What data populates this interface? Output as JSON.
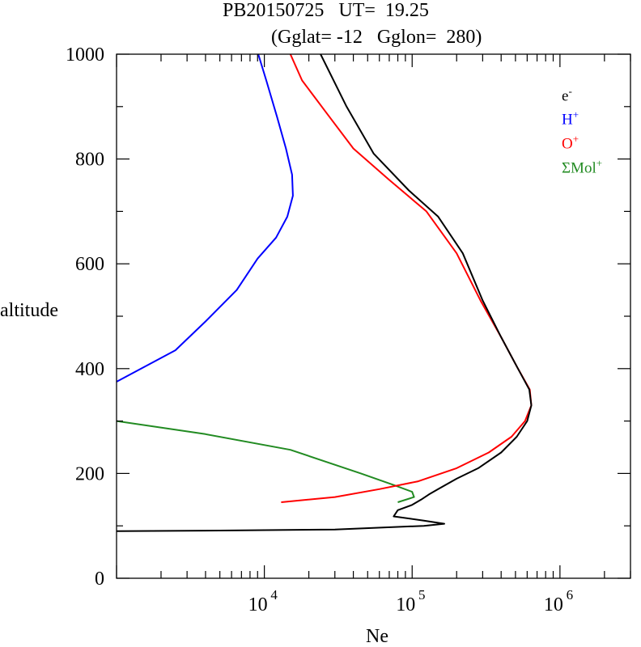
{
  "title": "PB20150725   UT=  19.25",
  "subtitle": "(Gglat= -12   Gglon=  280)",
  "colors": {
    "e": "#000000",
    "H": "#0000ff",
    "O": "#ff0000",
    "Mol": "#228b22",
    "axis": "#000000"
  },
  "chart_data": {
    "type": "line",
    "xlabel": "Ne",
    "ylabel": "altitude",
    "xscale": "log",
    "xlim": [
      1000,
      3000000
    ],
    "ylim": [
      0,
      1000
    ],
    "x_tick_labels": [
      {
        "value": 10000,
        "base": "10",
        "exp": "4"
      },
      {
        "value": 100000,
        "base": "10",
        "exp": "5"
      },
      {
        "value": 1000000,
        "base": "10",
        "exp": "6"
      }
    ],
    "y_tick_labels": [
      "0",
      "200",
      "400",
      "600",
      "800",
      "1000"
    ],
    "y_tick_values": [
      0,
      200,
      400,
      600,
      800,
      1000
    ],
    "legend_position": "top-right",
    "series": [
      {
        "name": "e",
        "sup": "-",
        "color": "#000000",
        "points": [
          [
            1000,
            90
          ],
          [
            5000,
            91
          ],
          [
            30000,
            93
          ],
          [
            120000,
            100
          ],
          [
            165000,
            104
          ],
          [
            120000,
            110
          ],
          [
            75000,
            118
          ],
          [
            80000,
            130
          ],
          [
            100000,
            140
          ],
          [
            115000,
            150
          ],
          [
            130000,
            160
          ],
          [
            150000,
            170
          ],
          [
            200000,
            190
          ],
          [
            280000,
            210
          ],
          [
            400000,
            240
          ],
          [
            510000,
            270
          ],
          [
            600000,
            300
          ],
          [
            640000,
            330
          ],
          [
            620000,
            360
          ],
          [
            520000,
            400
          ],
          [
            400000,
            460
          ],
          [
            300000,
            530
          ],
          [
            220000,
            620
          ],
          [
            150000,
            690
          ],
          [
            95000,
            740
          ],
          [
            55000,
            810
          ],
          [
            36000,
            900
          ],
          [
            24000,
            1000
          ]
        ]
      },
      {
        "name": "H",
        "sup": "+",
        "color": "#0000ff",
        "points": [
          [
            1000,
            375
          ],
          [
            2500,
            435
          ],
          [
            4000,
            490
          ],
          [
            6500,
            550
          ],
          [
            9000,
            610
          ],
          [
            12000,
            650
          ],
          [
            14300,
            690
          ],
          [
            15600,
            730
          ],
          [
            15400,
            770
          ],
          [
            14000,
            820
          ],
          [
            12200,
            880
          ],
          [
            10300,
            950
          ],
          [
            9100,
            1000
          ]
        ]
      },
      {
        "name": "O",
        "sup": "+",
        "color": "#ff0000",
        "points": [
          [
            13000,
            145
          ],
          [
            30000,
            155
          ],
          [
            60000,
            170
          ],
          [
            110000,
            185
          ],
          [
            200000,
            210
          ],
          [
            330000,
            240
          ],
          [
            470000,
            270
          ],
          [
            580000,
            300
          ],
          [
            640000,
            330
          ],
          [
            625000,
            360
          ],
          [
            520000,
            400
          ],
          [
            400000,
            460
          ],
          [
            290000,
            530
          ],
          [
            200000,
            620
          ],
          [
            125000,
            700
          ],
          [
            70000,
            760
          ],
          [
            40000,
            820
          ],
          [
            26000,
            890
          ],
          [
            18000,
            950
          ],
          [
            15000,
            1000
          ]
        ]
      },
      {
        "name": "ΣMol",
        "sup": "+",
        "color": "#228b22",
        "points": [
          [
            1000,
            300
          ],
          [
            4000,
            275
          ],
          [
            15000,
            245
          ],
          [
            45000,
            200
          ],
          [
            75000,
            178
          ],
          [
            100000,
            165
          ],
          [
            103000,
            155
          ],
          [
            80000,
            145
          ]
        ]
      }
    ]
  }
}
